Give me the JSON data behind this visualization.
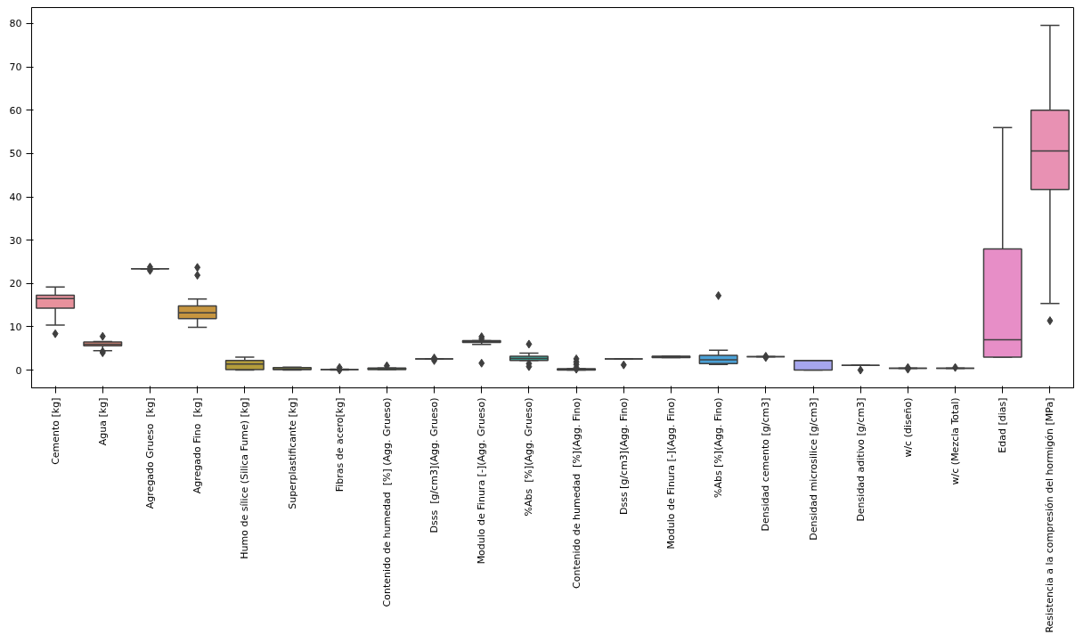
{
  "chart_data": {
    "type": "box",
    "categories": [
      "Cemento [kg]",
      "Agua [kg]",
      "Agregado Grueso  [kg]",
      "Agregado Fino  [kg]",
      "Humo de sílice (Silica Fume) [kg]",
      "Superplastificante [kg]",
      "Fibras de acero[kg]",
      "Contenido de humedad  [%] (Agg. Grueso)",
      "Dsss  [g/cm3](Agg. Grueso)",
      "Modulo de Finura [-](Agg. Grueso)",
      "%Abs  [%](Agg. Grueso)",
      "Contenido de humedad  [%](Agg. Fino)",
      "Dsss [g/cm3](Agg. Fino)",
      "Modulo de Finura [-](Agg. Fino)",
      "%Abs [%](Agg. Fino)",
      "Densidad cemento [g/cm3]",
      "Densidad microsilice [g/cm3]",
      "Densidad aditivo [g/cm3]",
      "w/c (diseño)",
      "w/c (Mezcla Total)",
      "Edad [dias]",
      "Resistencia a la compresión del hormigón [MPa]"
    ],
    "colors": [
      "#e8919c",
      "#e58d7c",
      "#3f3f3f",
      "#c6953f",
      "#b39c3b",
      "#a0a43b",
      "#3f3f3f",
      "#5dab3c",
      "#3f3f3f",
      "#3da98a",
      "#3ea99b",
      "#3fa7a8",
      "#3f3f3f",
      "#43a3c3",
      "#4aa0d6",
      "#3f3f3f",
      "#a6a6ee",
      "#3f3f3f",
      "#3f3f3f",
      "#3f3f3f",
      "#e78ec7",
      "#e891b3"
    ],
    "boxes": [
      {
        "low": 10.4,
        "q1": 14.3,
        "median": 16.5,
        "q3": 17.3,
        "high": 19.2,
        "outliers": [
          8.4
        ]
      },
      {
        "low": 4.5,
        "q1": 5.6,
        "median": 6.0,
        "q3": 6.5,
        "high": 6.6,
        "outliers": [
          7.8,
          4.0,
          4.3
        ]
      },
      {
        "low": 23.4,
        "q1": 23.4,
        "median": 23.4,
        "q3": 23.4,
        "high": 23.4,
        "outliers": [
          23.0,
          23.8
        ]
      },
      {
        "low": 9.9,
        "q1": 11.9,
        "median": 13.2,
        "q3": 14.8,
        "high": 16.4,
        "outliers": [
          23.7,
          21.9
        ]
      },
      {
        "low": 0,
        "q1": 0.1,
        "median": 1.4,
        "q3": 2.2,
        "high": 3.0
      },
      {
        "low": 0,
        "q1": 0.1,
        "median": 0.2,
        "q3": 0.6,
        "high": 0.7
      },
      {
        "low": 0,
        "q1": 0.1,
        "median": 0.1,
        "q3": 0.1,
        "high": 0.2,
        "outliers": [
          0.6,
          0.0
        ]
      },
      {
        "low": 0.1,
        "q1": 0.1,
        "median": 0.3,
        "q3": 0.5,
        "high": 0.5,
        "outliers": [
          1.0
        ]
      },
      {
        "low": 2.6,
        "q1": 2.6,
        "median": 2.6,
        "q3": 2.6,
        "high": 2.6,
        "outliers": [
          2.2,
          2.8
        ]
      },
      {
        "low": 5.9,
        "q1": 6.4,
        "median": 6.6,
        "q3": 6.8,
        "high": 6.8,
        "outliers": [
          7.7,
          7.2,
          1.6
        ]
      },
      {
        "low": 2.2,
        "q1": 2.2,
        "median": 2.7,
        "q3": 3.2,
        "high": 3.9,
        "outliers": [
          6.0,
          1.5,
          0.8
        ]
      },
      {
        "low": 0,
        "q1": 0,
        "median": 0.1,
        "q3": 0.3,
        "high": 0.3,
        "outliers": [
          2.6,
          1.9,
          1.3,
          0.6,
          0.2
        ]
      },
      {
        "low": 2.6,
        "q1": 2.6,
        "median": 2.6,
        "q3": 2.6,
        "high": 2.6,
        "outliers": [
          1.2
        ]
      },
      {
        "low": 2.9,
        "q1": 2.9,
        "median": 3.1,
        "q3": 3.2,
        "high": 3.2
      },
      {
        "low": 1.3,
        "q1": 1.5,
        "median": 2.4,
        "q3": 3.4,
        "high": 4.6,
        "outliers": [
          17.2
        ]
      },
      {
        "low": 3.1,
        "q1": 3.1,
        "median": 3.1,
        "q3": 3.1,
        "high": 3.1,
        "outliers": [
          3.2,
          2.9
        ]
      },
      {
        "low": 0,
        "q1": 0,
        "median": 2.2,
        "q3": 2.2,
        "high": 2.2
      },
      {
        "low": 1.1,
        "q1": 1.1,
        "median": 1.1,
        "q3": 1.1,
        "high": 1.1,
        "outliers": [
          0.0
        ]
      },
      {
        "low": 0.4,
        "q1": 0.4,
        "median": 0.4,
        "q3": 0.4,
        "high": 0.4,
        "outliers": [
          0.6,
          0.2
        ]
      },
      {
        "low": 0.4,
        "q1": 0.4,
        "median": 0.4,
        "q3": 0.4,
        "high": 0.4,
        "outliers": [
          0.6
        ]
      },
      {
        "low": 3,
        "q1": 3,
        "median": 7,
        "q3": 28,
        "high": 56
      },
      {
        "low": 15.4,
        "q1": 41.7,
        "median": 50.6,
        "q3": 60.0,
        "high": 79.6,
        "outliers": [
          11.4
        ]
      }
    ],
    "ylim": [
      -4.1,
      83.7
    ],
    "yticks": [
      0,
      10,
      20,
      30,
      40,
      50,
      60,
      70,
      80
    ],
    "grid": false,
    "marker": "diamond"
  }
}
